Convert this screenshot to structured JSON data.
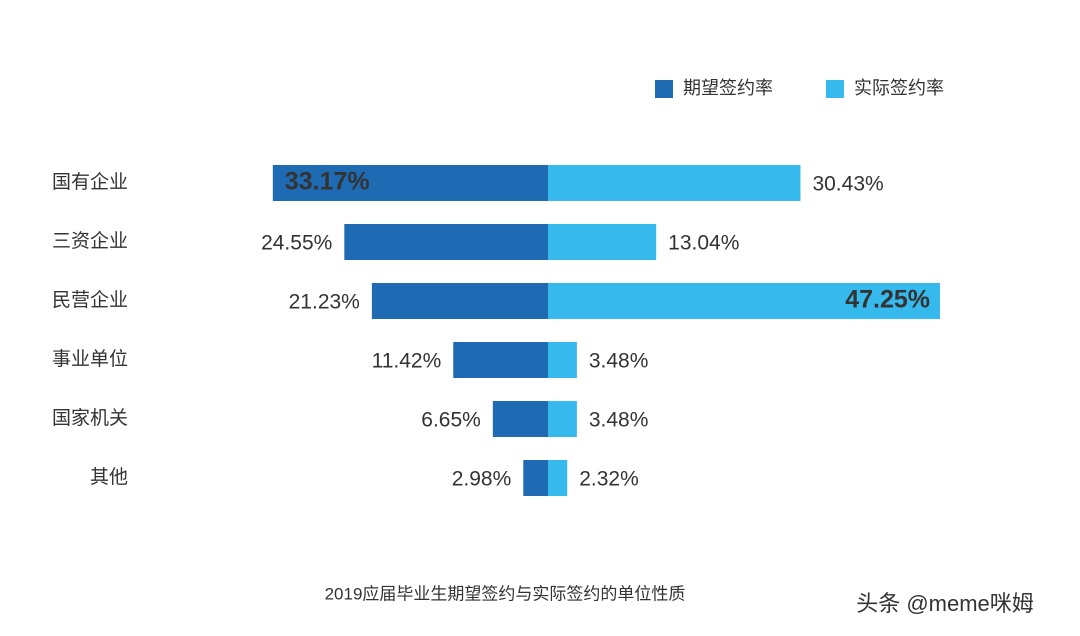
{
  "chart_data": {
    "type": "butterfly-bar",
    "categories": [
      "国有企业",
      "三资企业",
      "民营企业",
      "事业单位",
      "国家机关",
      "其他"
    ],
    "series": [
      {
        "name": "期望签约率",
        "color": "#1f6bb3",
        "values": [
          33.17,
          24.55,
          21.23,
          11.42,
          6.65,
          2.98
        ],
        "value_labels": [
          "33.17%",
          "24.55%",
          "21.23%",
          "11.42%",
          "6.65%",
          "2.98%"
        ]
      },
      {
        "name": "实际签约率",
        "color": "#36b9ec",
        "values": [
          30.43,
          13.04,
          47.25,
          3.48,
          3.48,
          2.32
        ],
        "value_labels": [
          "30.43%",
          "13.04%",
          "47.25%",
          "3.48%",
          "3.48%",
          "2.32%"
        ]
      }
    ],
    "caption": "2019应届毕业生期望签约与实际签约的单位性质",
    "watermark": "头条 @meme咪姆",
    "legend": "top-right"
  }
}
